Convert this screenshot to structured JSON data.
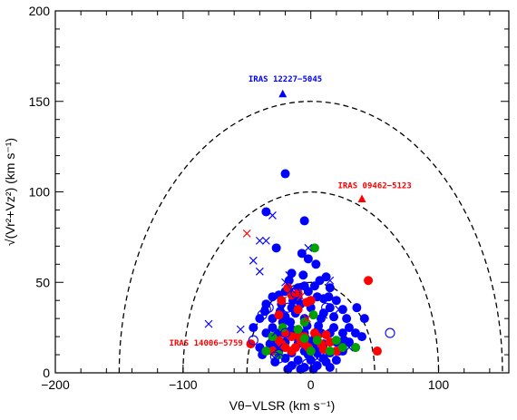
{
  "chart_data": {
    "type": "scatter",
    "xlabel": "Vθ−VLSR (km s⁻¹)",
    "ylabel": "√(Vr²+Vz²) (km s⁻¹)",
    "xlim": [
      -200,
      155
    ],
    "ylim": [
      0,
      200
    ],
    "x_ticks": [
      "−200",
      "−100",
      "0",
      "100"
    ],
    "y_ticks": [
      "0",
      "50",
      "100",
      "150",
      "200"
    ],
    "grid": false,
    "circles": [
      50,
      100,
      150
    ],
    "colors": {
      "blue": "#0000ff",
      "red": "#ff0000",
      "green": "#00a000"
    },
    "annotations": [
      {
        "text": "IRAS 12227−5045",
        "x": -20,
        "y": 161,
        "color": "#0000ff"
      },
      {
        "text": "IRAS 09462−5123",
        "x": 50,
        "y": 102,
        "color": "#ff0000"
      },
      {
        "text": "IRAS 14006−5759",
        "x": -82,
        "y": 15,
        "color": "#ff0000"
      }
    ],
    "series": [
      {
        "marker": "filled-circle",
        "color": "#0000ff",
        "points": [
          [
            -20,
            110
          ],
          [
            -5,
            84
          ],
          [
            -35,
            89
          ],
          [
            -27,
            69
          ],
          [
            -7,
            66
          ],
          [
            -2,
            63
          ],
          [
            4,
            60
          ],
          [
            -15,
            55
          ],
          [
            -17,
            51
          ],
          [
            -5,
            48
          ],
          [
            -10,
            47
          ],
          [
            7,
            51
          ],
          [
            12,
            53
          ],
          [
            -20,
            45
          ],
          [
            -25,
            43
          ],
          [
            -30,
            42
          ],
          [
            15,
            47
          ],
          [
            -2,
            45
          ],
          [
            -10,
            42
          ],
          [
            5,
            42
          ],
          [
            10,
            41
          ],
          [
            20,
            40
          ],
          [
            -35,
            38
          ],
          [
            -23,
            38
          ],
          [
            -15,
            36
          ],
          [
            0,
            36
          ],
          [
            15,
            36
          ],
          [
            25,
            35
          ],
          [
            -40,
            30
          ],
          [
            -30,
            30
          ],
          [
            -20,
            31
          ],
          [
            -5,
            30
          ],
          [
            8,
            30
          ],
          [
            18,
            31
          ],
          [
            28,
            30
          ],
          [
            -35,
            22
          ],
          [
            -25,
            22
          ],
          [
            -15,
            24
          ],
          [
            -5,
            22
          ],
          [
            5,
            23
          ],
          [
            15,
            22
          ],
          [
            25,
            22
          ],
          [
            35,
            22
          ],
          [
            -30,
            18
          ],
          [
            -20,
            17
          ],
          [
            -10,
            16
          ],
          [
            0,
            17
          ],
          [
            10,
            16
          ],
          [
            20,
            17
          ],
          [
            30,
            17
          ],
          [
            -25,
            12
          ],
          [
            -15,
            11
          ],
          [
            -5,
            12
          ],
          [
            5,
            11
          ],
          [
            15,
            11
          ],
          [
            25,
            12
          ],
          [
            -20,
            8
          ],
          [
            -10,
            7
          ],
          [
            0,
            7
          ],
          [
            10,
            8
          ],
          [
            20,
            7
          ],
          [
            -15,
            4
          ],
          [
            -5,
            3
          ],
          [
            5,
            4
          ],
          [
            15,
            3
          ],
          [
            -3,
            26
          ],
          [
            3,
            19
          ],
          [
            -12,
            20
          ],
          [
            -40,
            14
          ],
          [
            -38,
            10
          ],
          [
            -28,
            6
          ],
          [
            -18,
            2
          ],
          [
            -8,
            2
          ],
          [
            2,
            2
          ],
          [
            12,
            6
          ],
          [
            35,
            14
          ],
          [
            42,
            30
          ],
          [
            -45,
            25
          ],
          [
            -30,
            25
          ],
          [
            0,
            40
          ],
          [
            -22,
            28
          ],
          [
            10,
            33
          ],
          [
            5,
            14
          ],
          [
            -12,
            33
          ],
          [
            -2,
            10
          ],
          [
            8,
            22
          ],
          [
            -32,
            16
          ],
          [
            -8,
            38
          ],
          [
            18,
            25
          ],
          [
            22,
            12
          ],
          [
            -24,
            34
          ],
          [
            30,
            25
          ],
          [
            -16,
            28
          ],
          [
            40,
            20
          ],
          [
            -6,
            54
          ],
          [
            3,
            48
          ],
          [
            -14,
            40
          ],
          [
            14,
            42
          ],
          [
            -26,
            16
          ],
          [
            -4,
            19
          ],
          [
            6,
            26
          ],
          [
            26,
            18
          ],
          [
            -36,
            34
          ],
          [
            36,
            36
          ]
        ]
      },
      {
        "marker": "filled-circle",
        "color": "#ff0000",
        "points": [
          [
            -18,
            47
          ],
          [
            -15,
            43
          ],
          [
            -23,
            40
          ],
          [
            -10,
            44
          ],
          [
            0,
            40
          ],
          [
            -10,
            35
          ],
          [
            -3,
            39
          ],
          [
            -25,
            32
          ],
          [
            -20,
            22
          ],
          [
            -15,
            20
          ],
          [
            -10,
            21
          ],
          [
            -5,
            20
          ],
          [
            -23,
            16
          ],
          [
            -12,
            14
          ],
          [
            -2,
            14
          ],
          [
            8,
            16
          ],
          [
            15,
            17
          ],
          [
            -15,
            12
          ],
          [
            0,
            12
          ],
          [
            10,
            13
          ],
          [
            20,
            12
          ],
          [
            -30,
            12
          ],
          [
            -25,
            18
          ],
          [
            -5,
            16
          ],
          [
            5,
            20
          ],
          [
            -47,
            16
          ],
          [
            45,
            51
          ],
          [
            52,
            12
          ],
          [
            -20,
            14
          ],
          [
            12,
            21
          ],
          [
            -8,
            18
          ],
          [
            3,
            22
          ]
        ]
      },
      {
        "marker": "filled-circle",
        "color": "#00a000",
        "points": [
          [
            3,
            69
          ],
          [
            -5,
            28
          ],
          [
            -22,
            25
          ],
          [
            -30,
            20
          ],
          [
            -5,
            19
          ],
          [
            5,
            18
          ],
          [
            20,
            18
          ],
          [
            25,
            14
          ],
          [
            35,
            14
          ],
          [
            -35,
            12
          ],
          [
            -10,
            24
          ],
          [
            0,
            12
          ],
          [
            15,
            12
          ],
          [
            -25,
            10
          ],
          [
            2,
            32
          ]
        ]
      },
      {
        "marker": "open-circle",
        "color": "#0000ff",
        "points": [
          [
            -35,
            35
          ],
          [
            -38,
            32
          ],
          [
            -33,
            36
          ],
          [
            -18,
            36
          ],
          [
            12,
            36
          ],
          [
            -12,
            44
          ],
          [
            -45,
            18
          ],
          [
            62,
            22
          ],
          [
            -25,
            8
          ],
          [
            -28,
            9
          ],
          [
            -3,
            5
          ],
          [
            -20,
            22
          ]
        ]
      },
      {
        "marker": "cross",
        "color": "#0000ff",
        "points": [
          [
            -30,
            87
          ],
          [
            -40,
            73
          ],
          [
            -35,
            73
          ],
          [
            -45,
            62
          ],
          [
            -40,
            56
          ],
          [
            -17,
            54
          ],
          [
            -20,
            50
          ],
          [
            -15,
            46
          ],
          [
            15,
            51
          ],
          [
            -80,
            27
          ],
          [
            -55,
            24
          ],
          [
            -28,
            22
          ],
          [
            -25,
            14
          ],
          [
            -28,
            8
          ],
          [
            -10,
            5
          ],
          [
            30,
            14
          ],
          [
            5,
            8
          ],
          [
            22,
            35
          ],
          [
            -2,
            69
          ],
          [
            10,
            32
          ]
        ]
      },
      {
        "marker": "cross",
        "color": "#ff0000",
        "points": [
          [
            -50,
            77
          ],
          [
            -3,
            30
          ],
          [
            -22,
            40
          ],
          [
            -8,
            42
          ]
        ]
      },
      {
        "marker": "filled-triangle",
        "color": "#0000ff",
        "points": [
          [
            -22,
            154
          ]
        ]
      },
      {
        "marker": "filled-triangle",
        "color": "#ff0000",
        "points": [
          [
            40,
            96
          ]
        ]
      }
    ]
  }
}
